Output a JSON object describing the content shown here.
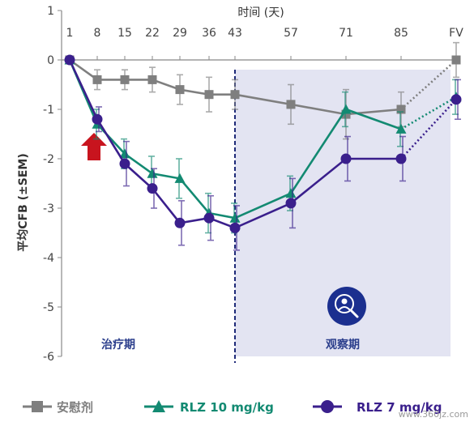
{
  "chart_data": {
    "type": "line",
    "xlabel": "时间 (天)",
    "ylabel": "平均CFB (±SEM)",
    "x_ticks": [
      "1",
      "8",
      "15",
      "22",
      "29",
      "36",
      "43",
      "57",
      "71",
      "85",
      "FV"
    ],
    "ylim": [
      -6,
      1
    ],
    "y_ticks": [
      1,
      0,
      -1,
      -2,
      -3,
      -4,
      -5,
      -6
    ],
    "grid": false,
    "legend_position": "bottom",
    "treatment_label": "治疗期",
    "observation_label": "观察期",
    "colors": {
      "placebo": "#7f7f7f",
      "rlz10": "#138a72",
      "rlz7": "#3a1f8c",
      "observation_bg": "#e3e4f2",
      "divider": "#1e2a78",
      "arrow": "#c8141e"
    },
    "series": [
      {
        "key": "placebo",
        "name": "安慰剂",
        "marker": "square",
        "values": [
          0,
          -0.4,
          -0.4,
          -0.4,
          -0.6,
          -0.7,
          -0.7,
          -0.9,
          -1.1,
          -1.0,
          0.0
        ],
        "err": [
          0,
          0.2,
          0.2,
          0.25,
          0.3,
          0.35,
          0.3,
          0.4,
          0.5,
          0.35,
          0.35
        ]
      },
      {
        "key": "rlz10",
        "name": "RLZ 10 mg/kg",
        "marker": "triangle",
        "values": [
          0,
          -1.3,
          -1.9,
          -2.3,
          -2.4,
          -3.1,
          -3.2,
          -2.7,
          -1.0,
          -1.4,
          -0.75
        ],
        "err": [
          0,
          0.3,
          0.3,
          0.35,
          0.4,
          0.4,
          0.3,
          0.35,
          0.35,
          0.35,
          0.35
        ]
      },
      {
        "key": "rlz7",
        "name": "RLZ 7 mg/kg",
        "marker": "circle",
        "values": [
          0,
          -1.2,
          -2.1,
          -2.6,
          -3.3,
          -3.2,
          -3.4,
          -2.9,
          -2.0,
          -2.0,
          -0.8
        ],
        "err": [
          0,
          0.25,
          0.45,
          0.4,
          0.45,
          0.45,
          0.45,
          0.5,
          0.45,
          0.45,
          0.4
        ]
      }
    ]
  },
  "watermark": "www.360jz.com"
}
